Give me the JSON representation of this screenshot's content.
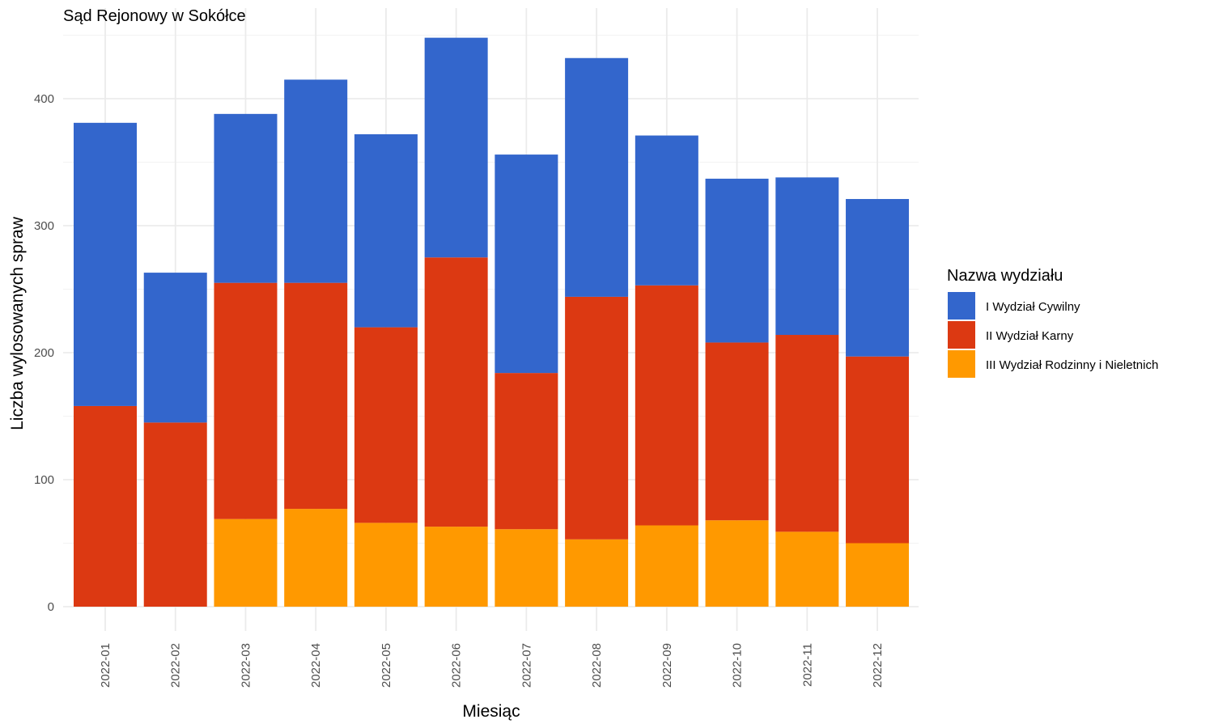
{
  "chart_data": {
    "type": "bar",
    "stacked": true,
    "title": "Sąd Rejonowy w Sokółce",
    "xlabel": "Miesiąc",
    "ylabel": "Liczba wylosowanych spraw",
    "ylim": [
      0,
      470
    ],
    "yticks": [
      0,
      100,
      200,
      300,
      400
    ],
    "grid": true,
    "legend_position": "right",
    "legend_title": "Nazwa wydziału",
    "categories": [
      "2022-01",
      "2022-02",
      "2022-03",
      "2022-04",
      "2022-05",
      "2022-06",
      "2022-07",
      "2022-08",
      "2022-09",
      "2022-10",
      "2022-11",
      "2022-12"
    ],
    "series": [
      {
        "name": "III Wydział Rodzinny i Nieletnich",
        "color": "#FF9900",
        "values": [
          0,
          0,
          69,
          77,
          66,
          63,
          61,
          53,
          64,
          68,
          59,
          50
        ]
      },
      {
        "name": "II Wydział Karny",
        "color": "#DC3912",
        "values": [
          158,
          145,
          186,
          178,
          154,
          212,
          123,
          191,
          189,
          140,
          155,
          147
        ]
      },
      {
        "name": "I Wydział Cywilny",
        "color": "#3366CC",
        "values": [
          223,
          118,
          133,
          160,
          152,
          173,
          172,
          188,
          118,
          129,
          124,
          124
        ]
      }
    ],
    "legend_order": [
      "I Wydział Cywilny",
      "II Wydział Karny",
      "III Wydział Rodzinny i Nieletnich"
    ]
  }
}
